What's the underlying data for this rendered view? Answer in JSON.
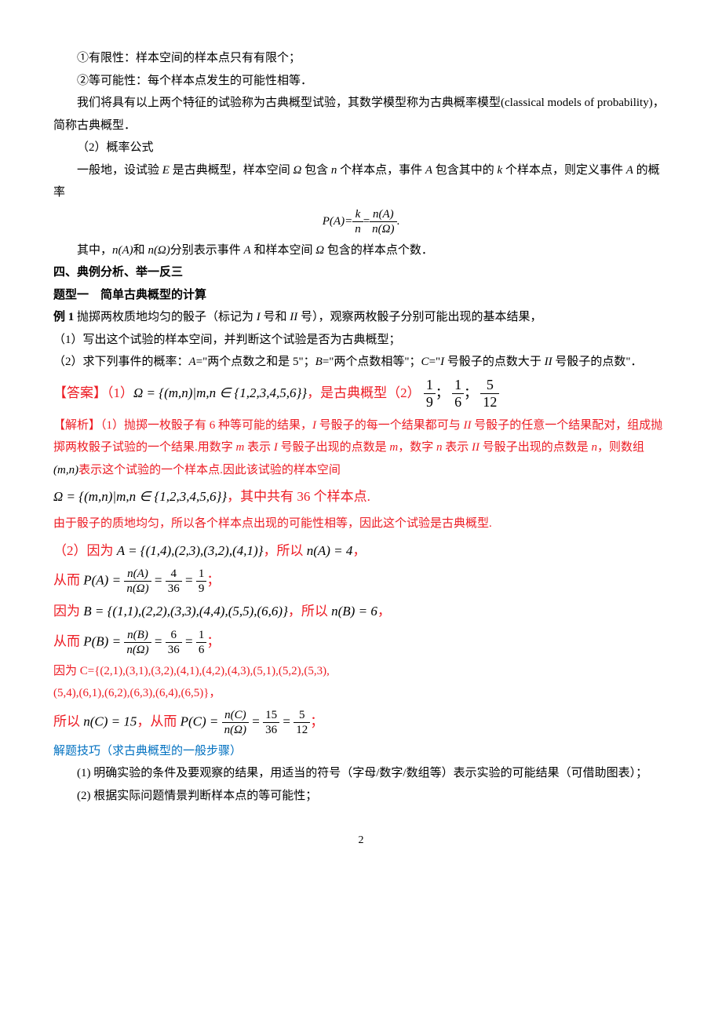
{
  "p1": "①有限性：样本空间的样本点只有有限个；",
  "p2": "②等可能性：每个样本点发生的可能性相等．",
  "p3_a": "我们将具有以上两个特征的试验称为古典概型试验，其数学模型称为古典概率模型(classical models of probability)，简称古典概型．",
  "p4": "（2）概率公式",
  "p5_a": "一般地，设试验 ",
  "p5_b": " 是古典概型，样本空间 ",
  "p5_c": " 包含 ",
  "p5_d": " 个样本点，事件 ",
  "p5_e": " 包含其中的 ",
  "p5_f": " 个样本点，则定义事件 ",
  "p5_g": " 的概率",
  "var_E": "E",
  "var_Omega": "Ω",
  "var_n": "n",
  "var_A": "A",
  "var_k": "k",
  "formula_PA": "P(A)=",
  "formula_k": "k",
  "formula_n": "n",
  "formula_eq": "=",
  "formula_nA": "n(A)",
  "formula_nOmega": "n(Ω)",
  "formula_period": ".",
  "p6_a": "其中，",
  "p6_b": "n(A)",
  "p6_c": "和 ",
  "p6_d": "n(Ω)",
  "p6_e": "分别表示事件 ",
  "p6_f": " 和样本空间 ",
  "p6_g": " 包含的样本点个数．",
  "h1": "四、典例分析、举一反三",
  "h2": "题型一　简单古典概型的计算",
  "ex1_label": "例 1",
  "ex1_a": "  抛掷两枚质地均匀的骰子（标记为 ",
  "ex1_I": "I",
  "ex1_b": " 号和 ",
  "ex1_II": "II",
  "ex1_c": " 号），观察两枚骰子分别可能出现的基本结果，",
  "ex1_q1": "（1）写出这个试验的样本空间，并判断这个试验是否为古典概型；",
  "ex1_q2_a": "（2）求下列事件的概率：",
  "ex1_q2_b": "A",
  "ex1_q2_c": "=\"两个点数之和是 5\"；",
  "ex1_q2_d": "B",
  "ex1_q2_e": "=\"两个点数相等\"；",
  "ex1_q2_f": "C",
  "ex1_q2_g": "=\"",
  "ex1_q2_h": " 号骰子的点数大于 ",
  "ex1_q2_i": " 号骰子的点数\"．",
  "ans_label": "【答案】",
  "ans1_a": "（1）",
  "ans1_omega": "Ω = {(m,n)|m,n ∈ {1,2,3,4,5,6}}",
  "ans1_b": "，是古典概型（2）",
  "ans1_f1_num": "1",
  "ans1_f1_den": "9",
  "ans1_sep": "；",
  "ans1_f2_num": "1",
  "ans1_f2_den": "6",
  "ans1_f3_num": "5",
  "ans1_f3_den": "12",
  "sol_label": "【解析】",
  "sol1_a": "（1）抛掷一枚骰子有 6 种等可能的结果，",
  "sol1_b": " 号骰子的每一个结果都可与 ",
  "sol1_c": " 号骰子的任意一个结果配对，组成抛掷两枚骰子试验的一个结果.用数字 ",
  "sol1_m": "m",
  "sol1_d": " 表示 ",
  "sol1_e": " 号骰子出现的点数是 ",
  "sol1_f": "，数字 ",
  "sol1_nn": "n",
  "sol1_g": " 表示 ",
  "sol1_h": " 号骰子出现的点数是 ",
  "sol1_i": "，则数组",
  "sol1_mn": "(m,n)",
  "sol1_j": "表示这个试验的一个样本点.因此该试验的样本空间",
  "sol2_omega": "Ω = {(m,n)|m,n ∈ {1,2,3,4,5,6}}",
  "sol2_b": "，其中共有 36 个样本点.",
  "sol3": "由于骰子的质地均匀，所以各个样本点出现的可能性相等，因此这个试验是古典概型.",
  "sol4_a": "（2）因为 ",
  "sol4_A": "A = {(1,4),(2,3),(3,2),(4,1)}",
  "sol4_b": "，所以 ",
  "sol4_nA": "n(A) = 4",
  "sol4_c": "，",
  "sol5_a": "从而 ",
  "sol5_PA": "P(A) = ",
  "sol5_nA": "n(A)",
  "sol5_nO": "n(Ω)",
  "sol5_eq1": " = ",
  "sol5_4": "4",
  "sol5_36": "36",
  "sol5_1": "1",
  "sol5_9": "9",
  "sol5_semi": "；",
  "sol6_a": "因为 ",
  "sol6_B": "B = {(1,1),(2,2),(3,3),(4,4),(5,5),(6,6)}",
  "sol6_b": "，所以 ",
  "sol6_nB": "n(B) = 6",
  "sol6_c": "，",
  "sol7_a": "从而 ",
  "sol7_PB": "P(B) = ",
  "sol7_nB": "n(B)",
  "sol7_nO": "n(Ω)",
  "sol7_6": "6",
  "sol7_36": "36",
  "sol7_1": "1",
  "sol7_6b": "6",
  "sol7_semi": "；",
  "sol8_a": "因为 C={(2,1),(3,1),(3,2),(4,1),(4,2),(4,3),(5,1),(5,2),(5,3),",
  "sol8_b": "(5,4),(6,1),(6,2),(6,3),(6,4),(6,5)}，",
  "sol9_a": "所以 ",
  "sol9_nC": "n(C) = 15",
  "sol9_b": "，从而 ",
  "sol9_PC": "P(C) = ",
  "sol9_nCt": "n(C)",
  "sol9_nO": "n(Ω)",
  "sol9_15": "15",
  "sol9_36": "36",
  "sol9_5": "5",
  "sol9_12": "12",
  "sol9_semi": "；",
  "tip_label": "解题技巧（求古典概型的一般步骤）",
  "tip1": "(1)  明确实验的条件及要观察的结果，用适当的符号（字母/数字/数组等）表示实验的可能结果（可借助图表）；",
  "tip2": "(2)  根据实际问题情景判断样本点的等可能性；",
  "page": "2"
}
